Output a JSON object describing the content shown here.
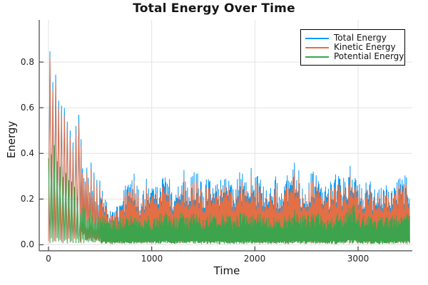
{
  "page": {
    "background": "#ffffff"
  },
  "chart_data": {
    "type": "line",
    "title": "Total Energy Over Time",
    "xlabel": "Time",
    "ylabel": "Energy",
    "xlim": [
      0,
      3525
    ],
    "ylim": [
      -0.027,
      0.984
    ],
    "xticks": [
      0,
      1000,
      2000,
      3000
    ],
    "xtick_labels": [
      "0",
      "1000",
      "2000",
      "3000"
    ],
    "yticks": [
      0,
      0.2,
      0.4,
      0.6,
      0.8
    ],
    "ytick_labels": [
      "0.0",
      "0.2",
      "0.4",
      "0.6",
      "0.8"
    ],
    "grid": true,
    "grid_color": "#e3e3e3",
    "axis_color": "#444444",
    "legend_position": "top-right",
    "legend_border_color": "#000000",
    "t_start": 0,
    "t_end": 3500,
    "description": "Three noisy rapidly-oscillating energy traces: large decaying oscillation from ~0.95 at t=0 settling by t~600 into a stationary noisy band; upper spike envelopes sampled every 50 time units below.",
    "envelope_t": [
      0,
      50,
      100,
      150,
      200,
      250,
      300,
      350,
      400,
      450,
      500,
      550,
      600,
      650,
      700,
      750,
      800,
      850,
      900,
      950,
      1000,
      1050,
      1100,
      1150,
      1200,
      1250,
      1300,
      1350,
      1400,
      1450,
      1500,
      1550,
      1600,
      1650,
      1700,
      1750,
      1800,
      1850,
      1900,
      1950,
      2000,
      2050,
      2100,
      2150,
      2200,
      2250,
      2300,
      2350,
      2400,
      2450,
      2500,
      2550,
      2600,
      2650,
      2700,
      2750,
      2800,
      2850,
      2900,
      2950,
      3000,
      3050,
      3100,
      3150,
      3200,
      3250,
      3300,
      3350,
      3400,
      3450,
      3500
    ],
    "series": [
      {
        "name": "Total Energy",
        "color": "#009af9",
        "upper_envelope": [
          0.95,
          0.82,
          0.73,
          0.68,
          0.63,
          0.55,
          0.6,
          0.45,
          0.38,
          0.33,
          0.28,
          0.2,
          0.16,
          0.18,
          0.18,
          0.28,
          0.37,
          0.28,
          0.2,
          0.3,
          0.25,
          0.3,
          0.32,
          0.34,
          0.25,
          0.28,
          0.35,
          0.26,
          0.33,
          0.32,
          0.25,
          0.33,
          0.28,
          0.28,
          0.37,
          0.3,
          0.25,
          0.32,
          0.33,
          0.35,
          0.3,
          0.32,
          0.25,
          0.25,
          0.3,
          0.25,
          0.3,
          0.32,
          0.38,
          0.28,
          0.28,
          0.32,
          0.34,
          0.26,
          0.26,
          0.3,
          0.32,
          0.28,
          0.35,
          0.37,
          0.28,
          0.28,
          0.32,
          0.25,
          0.25,
          0.3,
          0.25,
          0.28,
          0.3,
          0.32,
          0.28
        ]
      },
      {
        "name": "Kinetic Energy",
        "color": "#e26f46",
        "upper_envelope": [
          0.93,
          0.78,
          0.69,
          0.64,
          0.59,
          0.51,
          0.56,
          0.42,
          0.35,
          0.3,
          0.25,
          0.18,
          0.14,
          0.16,
          0.16,
          0.25,
          0.33,
          0.25,
          0.18,
          0.27,
          0.22,
          0.27,
          0.28,
          0.3,
          0.22,
          0.25,
          0.31,
          0.23,
          0.29,
          0.28,
          0.22,
          0.29,
          0.25,
          0.25,
          0.33,
          0.27,
          0.22,
          0.28,
          0.29,
          0.31,
          0.27,
          0.28,
          0.22,
          0.22,
          0.27,
          0.22,
          0.27,
          0.28,
          0.34,
          0.25,
          0.25,
          0.28,
          0.3,
          0.23,
          0.23,
          0.27,
          0.28,
          0.25,
          0.31,
          0.33,
          0.25,
          0.25,
          0.28,
          0.22,
          0.22,
          0.27,
          0.22,
          0.25,
          0.27,
          0.28,
          0.25
        ]
      },
      {
        "name": "Potential Energy",
        "color": "#3da44d",
        "upper_envelope": [
          0.52,
          0.45,
          0.4,
          0.35,
          0.3,
          0.26,
          0.23,
          0.2,
          0.18,
          0.16,
          0.14,
          0.12,
          0.11,
          0.11,
          0.12,
          0.13,
          0.15,
          0.13,
          0.11,
          0.13,
          0.12,
          0.13,
          0.14,
          0.15,
          0.12,
          0.13,
          0.15,
          0.12,
          0.14,
          0.14,
          0.12,
          0.14,
          0.13,
          0.13,
          0.15,
          0.13,
          0.12,
          0.14,
          0.14,
          0.15,
          0.13,
          0.14,
          0.12,
          0.12,
          0.13,
          0.12,
          0.13,
          0.14,
          0.16,
          0.13,
          0.13,
          0.14,
          0.15,
          0.12,
          0.12,
          0.13,
          0.14,
          0.13,
          0.17,
          0.18,
          0.14,
          0.13,
          0.14,
          0.12,
          0.12,
          0.13,
          0.12,
          0.13,
          0.14,
          0.15,
          0.13
        ]
      }
    ]
  }
}
